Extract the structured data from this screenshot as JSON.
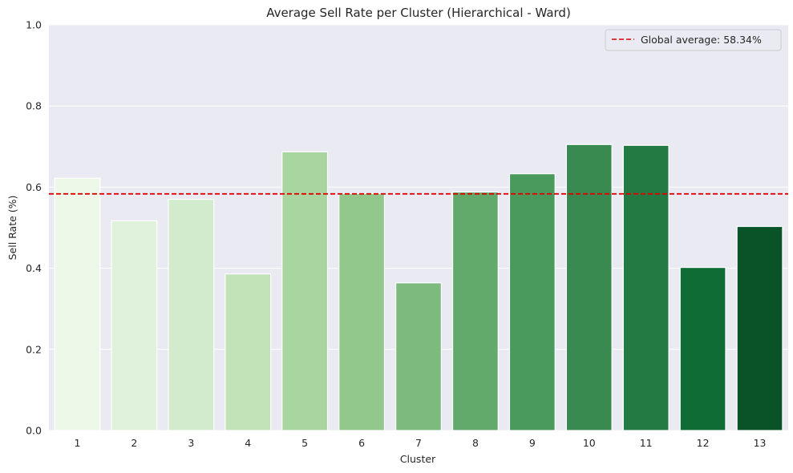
{
  "chart_data": {
    "type": "bar",
    "title": "Average Sell Rate per Cluster (Hierarchical - Ward)",
    "xlabel": "Cluster",
    "ylabel": "Sell Rate (%)",
    "ylim": [
      0,
      1.0
    ],
    "y_ticks": [
      "0.0",
      "0.2",
      "0.4",
      "0.6",
      "0.8",
      "1.0"
    ],
    "categories": [
      "1",
      "2",
      "3",
      "4",
      "5",
      "6",
      "7",
      "8",
      "9",
      "10",
      "11",
      "12",
      "13"
    ],
    "values": [
      0.622,
      0.517,
      0.57,
      0.386,
      0.687,
      0.584,
      0.364,
      0.588,
      0.633,
      0.705,
      0.703,
      0.402,
      0.503
    ],
    "bar_colors": [
      "#edf8e9",
      "#e1f2dc",
      "#d2ebcc",
      "#c0e3b7",
      "#a9d5a0",
      "#92c88b",
      "#7cba7d",
      "#62a96c",
      "#4a9a5e",
      "#388a51",
      "#237a43",
      "#0f6c34",
      "#0a5329"
    ],
    "reference_line": {
      "value": 0.5834,
      "label": "Global average: 58.34%",
      "color": "#e00000",
      "style": "dashed"
    },
    "legend_position": "top-right",
    "grid": true,
    "background": "#eaeaf2"
  }
}
